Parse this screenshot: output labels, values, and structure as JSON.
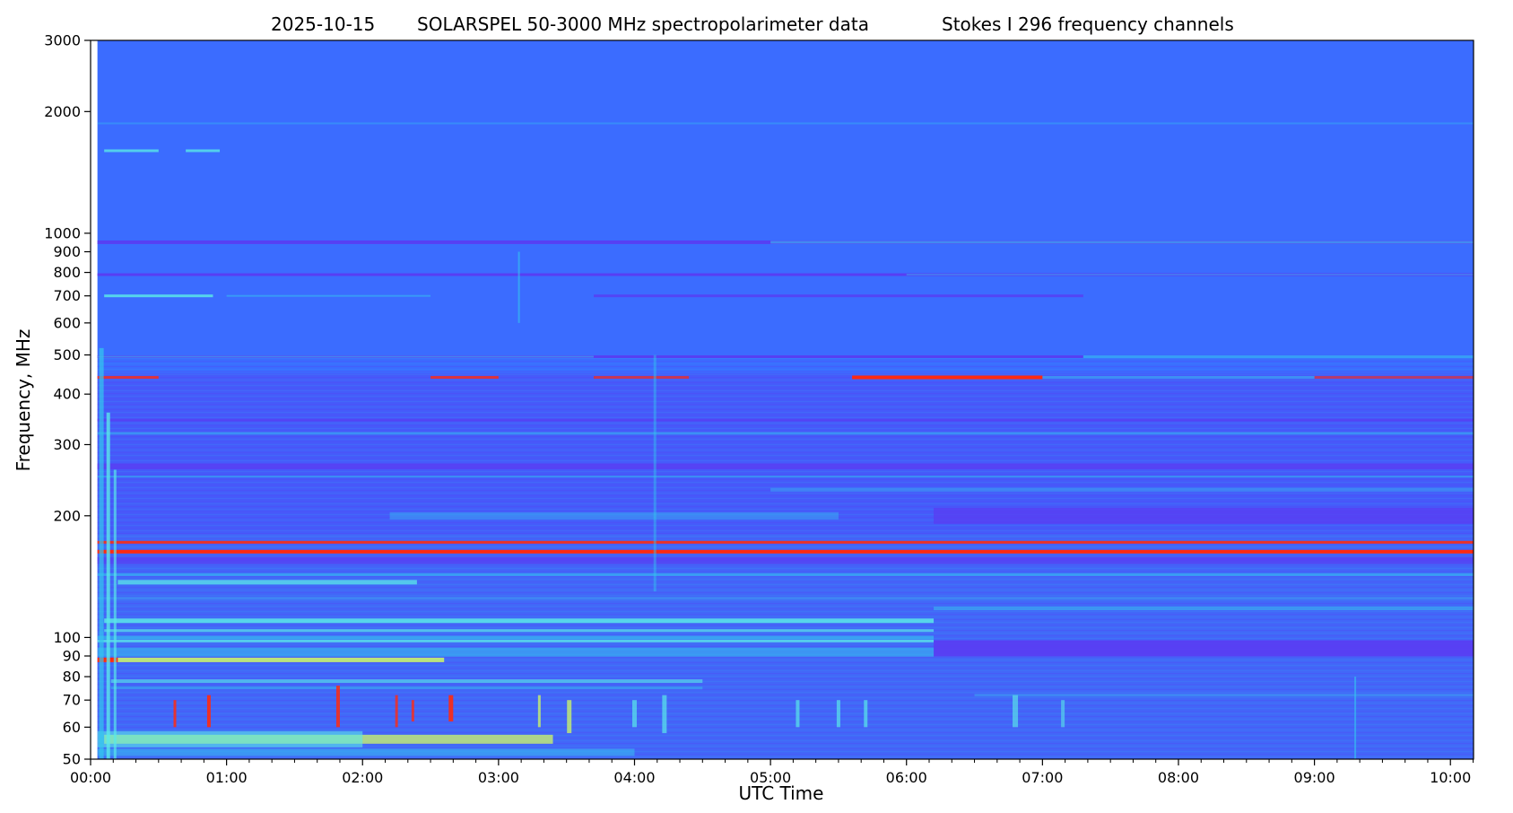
{
  "chart_data": {
    "type": "heatmap",
    "title_parts": [
      "2025-10-15",
      "SOLARSPEL   50-3000 MHz spectropolarimeter data",
      "Stokes I   296 frequency channels"
    ],
    "xlabel": "UTC Time",
    "ylabel": "Frequency, MHz",
    "x_ticks": [
      "00:00",
      "01:00",
      "02:00",
      "03:00",
      "04:00",
      "05:00",
      "06:00",
      "07:00",
      "08:00",
      "09:00",
      "10:00"
    ],
    "y_ticks": [
      3000,
      2000,
      1000,
      900,
      800,
      700,
      600,
      500,
      400,
      300,
      200,
      100,
      90,
      80,
      70,
      60,
      50
    ],
    "ylim": [
      50,
      3000
    ],
    "xlim_hours": [
      0,
      10.17
    ],
    "data_start_hours": 0.05,
    "y_scale": "log",
    "colormap": "rainbow",
    "colors": {
      "background": "#3b6cff",
      "blue_violet": "#5a3cf2",
      "cyan": "#33c8ee",
      "light_cyan": "#5ae8e8",
      "yellow_green": "#c8f06e",
      "red": "#ff2a10"
    },
    "horizontal_bands": [
      {
        "mhz": 1870,
        "t0": 0.05,
        "t1": 10.17,
        "color": "cyan",
        "opacity": 0.35,
        "width": 2
      },
      {
        "mhz": 1600,
        "t0": 0.1,
        "t1": 0.5,
        "color": "light_cyan",
        "opacity": 0.8,
        "width": 3
      },
      {
        "mhz": 1600,
        "t0": 0.7,
        "t1": 0.95,
        "color": "light_cyan",
        "opacity": 0.8,
        "width": 3
      },
      {
        "mhz": 950,
        "t0": 0.05,
        "t1": 10.17,
        "color": "blue_violet",
        "opacity": 0.9,
        "width": 4
      },
      {
        "mhz": 950,
        "t0": 5.0,
        "t1": 10.17,
        "color": "cyan",
        "opacity": 0.55,
        "width": 3
      },
      {
        "mhz": 790,
        "t0": 0.05,
        "t1": 10.17,
        "color": "blue_violet",
        "opacity": 0.95,
        "width": 3
      },
      {
        "mhz": 790,
        "t0": 6.0,
        "t1": 10.17,
        "color": "cyan",
        "opacity": 0.4,
        "width": 2
      },
      {
        "mhz": 700,
        "t0": 0.1,
        "t1": 0.9,
        "color": "light_cyan",
        "opacity": 0.85,
        "width": 3
      },
      {
        "mhz": 700,
        "t0": 1.0,
        "t1": 2.5,
        "color": "cyan",
        "opacity": 0.5,
        "width": 2
      },
      {
        "mhz": 700,
        "t0": 3.7,
        "t1": 7.3,
        "color": "blue_violet",
        "opacity": 0.8,
        "width": 3
      },
      {
        "mhz": 495,
        "t0": 0.05,
        "t1": 7.3,
        "color": "blue_violet",
        "opacity": 0.9,
        "width": 3
      },
      {
        "mhz": 495,
        "t0": 0.05,
        "t1": 3.7,
        "color": "cyan",
        "opacity": 0.5,
        "width": 2
      },
      {
        "mhz": 495,
        "t0": 7.3,
        "t1": 10.17,
        "color": "cyan",
        "opacity": 0.55,
        "width": 3
      },
      {
        "mhz": 440,
        "t0": 5.6,
        "t1": 7.0,
        "color": "red",
        "opacity": 1,
        "width": 4
      },
      {
        "mhz": 440,
        "t0": 2.5,
        "t1": 3.0,
        "color": "red",
        "opacity": 0.8,
        "width": 3
      },
      {
        "mhz": 440,
        "t0": 0.05,
        "t1": 0.5,
        "color": "red",
        "opacity": 0.8,
        "width": 3
      },
      {
        "mhz": 440,
        "t0": 3.7,
        "t1": 4.4,
        "color": "red",
        "opacity": 0.7,
        "width": 3
      },
      {
        "mhz": 440,
        "t0": 9.0,
        "t1": 10.17,
        "color": "red",
        "opacity": 0.6,
        "width": 3
      },
      {
        "mhz": 440,
        "t0": 7.0,
        "t1": 9.0,
        "color": "cyan",
        "opacity": 0.5,
        "width": 3
      },
      {
        "mhz": 345,
        "t0": 0.05,
        "t1": 10.17,
        "color": "blue_violet",
        "opacity": 0.7,
        "width": 3
      },
      {
        "mhz": 320,
        "t0": 0.05,
        "t1": 10.17,
        "color": "cyan",
        "opacity": 0.45,
        "width": 3
      },
      {
        "mhz": 265,
        "t0": 0.05,
        "t1": 10.17,
        "color": "blue_violet",
        "opacity": 0.8,
        "width": 6
      },
      {
        "mhz": 250,
        "t0": 0.05,
        "t1": 10.17,
        "color": "cyan",
        "opacity": 0.45,
        "width": 2
      },
      {
        "mhz": 232,
        "t0": 5.0,
        "t1": 10.17,
        "color": "cyan",
        "opacity": 0.4,
        "width": 4
      },
      {
        "mhz": 200,
        "t0": 6.2,
        "t1": 10.17,
        "color": "blue_violet",
        "opacity": 0.75,
        "width": 18
      },
      {
        "mhz": 200,
        "t0": 2.2,
        "t1": 5.5,
        "color": "cyan",
        "opacity": 0.4,
        "width": 8
      },
      {
        "mhz": 172,
        "t0": 0.05,
        "t1": 10.17,
        "color": "red",
        "opacity": 0.9,
        "width": 3
      },
      {
        "mhz": 163,
        "t0": 0.05,
        "t1": 10.17,
        "color": "red",
        "opacity": 1,
        "width": 4
      },
      {
        "mhz": 155,
        "t0": 0.05,
        "t1": 10.17,
        "color": "blue_violet",
        "opacity": 0.7,
        "width": 8
      },
      {
        "mhz": 143,
        "t0": 0.05,
        "t1": 10.17,
        "color": "cyan",
        "opacity": 0.55,
        "width": 3
      },
      {
        "mhz": 137,
        "t0": 0.2,
        "t1": 2.4,
        "color": "light_cyan",
        "opacity": 0.75,
        "width": 5
      },
      {
        "mhz": 125,
        "t0": 0.05,
        "t1": 10.17,
        "color": "cyan",
        "opacity": 0.35,
        "width": 3
      },
      {
        "mhz": 118,
        "t0": 6.2,
        "t1": 10.17,
        "color": "cyan",
        "opacity": 0.5,
        "width": 4
      },
      {
        "mhz": 110,
        "t0": 0.1,
        "t1": 6.2,
        "color": "light_cyan",
        "opacity": 0.85,
        "width": 5
      },
      {
        "mhz": 104,
        "t0": 0.1,
        "t1": 6.2,
        "color": "light_cyan",
        "opacity": 0.7,
        "width": 3
      },
      {
        "mhz": 100,
        "t0": 0.05,
        "t1": 6.2,
        "color": "cyan",
        "opacity": 0.6,
        "width": 4
      },
      {
        "mhz": 98,
        "t0": 0.05,
        "t1": 6.2,
        "color": "light_cyan",
        "opacity": 0.8,
        "width": 3
      },
      {
        "mhz": 94,
        "t0": 6.2,
        "t1": 10.17,
        "color": "blue_violet",
        "opacity": 0.9,
        "width": 18
      },
      {
        "mhz": 92,
        "t0": 0.05,
        "t1": 6.2,
        "color": "cyan",
        "opacity": 0.5,
        "width": 10
      },
      {
        "mhz": 88,
        "t0": 0.1,
        "t1": 2.6,
        "color": "yellow_green",
        "opacity": 0.9,
        "width": 5
      },
      {
        "mhz": 88,
        "t0": 0.05,
        "t1": 0.2,
        "color": "red",
        "opacity": 1,
        "width": 5
      },
      {
        "mhz": 78,
        "t0": 0.15,
        "t1": 4.5,
        "color": "light_cyan",
        "opacity": 0.6,
        "width": 4
      },
      {
        "mhz": 75,
        "t0": 0.15,
        "t1": 4.5,
        "color": "cyan",
        "opacity": 0.45,
        "width": 3
      },
      {
        "mhz": 72,
        "t0": 6.5,
        "t1": 10.17,
        "color": "cyan",
        "opacity": 0.35,
        "width": 3
      },
      {
        "mhz": 56,
        "t0": 0.1,
        "t1": 3.4,
        "color": "yellow_green",
        "opacity": 0.8,
        "width": 10
      },
      {
        "mhz": 56,
        "t0": 0.05,
        "t1": 2.0,
        "color": "light_cyan",
        "opacity": 0.6,
        "width": 18
      },
      {
        "mhz": 52,
        "t0": 0.05,
        "t1": 4.0,
        "color": "cyan",
        "opacity": 0.5,
        "width": 8
      }
    ],
    "vertical_features": [
      {
        "t": 0.08,
        "f0": 50,
        "f1": 520,
        "color": "cyan",
        "opacity": 0.7,
        "width": 5
      },
      {
        "t": 0.13,
        "f0": 50,
        "f1": 360,
        "color": "light_cyan",
        "opacity": 0.8,
        "width": 4
      },
      {
        "t": 0.18,
        "f0": 50,
        "f1": 260,
        "color": "light_cyan",
        "opacity": 0.7,
        "width": 3
      },
      {
        "t": 3.15,
        "f0": 600,
        "f1": 900,
        "color": "cyan",
        "opacity": 0.6,
        "width": 2
      },
      {
        "t": 4.15,
        "f0": 130,
        "f1": 500,
        "color": "cyan",
        "opacity": 0.45,
        "width": 3
      },
      {
        "t": 0.62,
        "f0": 60,
        "f1": 70,
        "color": "red",
        "opacity": 0.85,
        "width": 3
      },
      {
        "t": 0.87,
        "f0": 60,
        "f1": 72,
        "color": "red",
        "opacity": 0.9,
        "width": 4
      },
      {
        "t": 1.82,
        "f0": 60,
        "f1": 76,
        "color": "red",
        "opacity": 0.85,
        "width": 4
      },
      {
        "t": 2.25,
        "f0": 60,
        "f1": 72,
        "color": "red",
        "opacity": 0.8,
        "width": 3
      },
      {
        "t": 2.37,
        "f0": 62,
        "f1": 70,
        "color": "red",
        "opacity": 0.8,
        "width": 3
      },
      {
        "t": 2.65,
        "f0": 62,
        "f1": 72,
        "color": "red",
        "opacity": 0.9,
        "width": 5
      },
      {
        "t": 3.3,
        "f0": 60,
        "f1": 72,
        "color": "yellow_green",
        "opacity": 0.8,
        "width": 3
      },
      {
        "t": 3.52,
        "f0": 58,
        "f1": 70,
        "color": "yellow_green",
        "opacity": 0.8,
        "width": 5
      },
      {
        "t": 4.0,
        "f0": 60,
        "f1": 70,
        "color": "light_cyan",
        "opacity": 0.7,
        "width": 5
      },
      {
        "t": 4.22,
        "f0": 58,
        "f1": 72,
        "color": "light_cyan",
        "opacity": 0.7,
        "width": 5
      },
      {
        "t": 5.2,
        "f0": 60,
        "f1": 70,
        "color": "light_cyan",
        "opacity": 0.7,
        "width": 4
      },
      {
        "t": 5.5,
        "f0": 60,
        "f1": 70,
        "color": "light_cyan",
        "opacity": 0.7,
        "width": 4
      },
      {
        "t": 5.7,
        "f0": 60,
        "f1": 70,
        "color": "light_cyan",
        "opacity": 0.7,
        "width": 4
      },
      {
        "t": 6.8,
        "f0": 60,
        "f1": 72,
        "color": "light_cyan",
        "opacity": 0.65,
        "width": 6
      },
      {
        "t": 7.15,
        "f0": 60,
        "f1": 70,
        "color": "light_cyan",
        "opacity": 0.6,
        "width": 4
      },
      {
        "t": 9.3,
        "f0": 50,
        "f1": 80,
        "color": "cyan",
        "opacity": 0.6,
        "width": 2
      }
    ]
  }
}
